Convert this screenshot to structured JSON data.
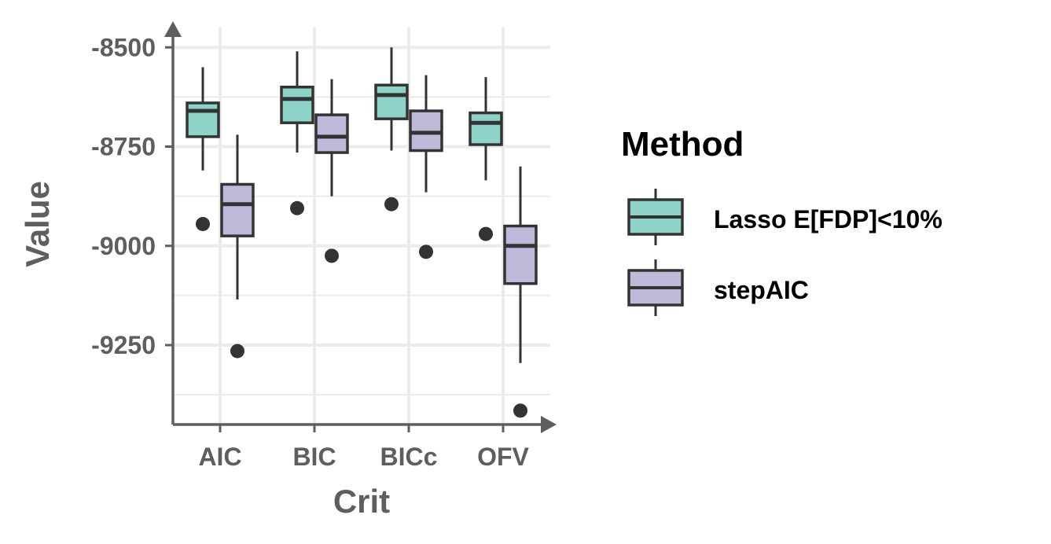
{
  "chart_data": {
    "type": "boxplot",
    "xlabel": "Crit",
    "ylabel": "Value",
    "categories": [
      "AIC",
      "BIC",
      "BICc",
      "OFV"
    ],
    "y_ticks": [
      -8500,
      -8750,
      -9000,
      -9250
    ],
    "y_tick_labels": [
      "-8500",
      "-8750",
      "-9000",
      "-9250"
    ],
    "ylim": [
      -9450,
      -8450
    ],
    "grid": true,
    "legend": {
      "title": "Method",
      "position": "right"
    },
    "series": [
      {
        "name": "Lasso E[FDP]<10%",
        "color": "#8dd3c7",
        "boxes": [
          {
            "category": "AIC",
            "whisker_low": -8810,
            "q1": -8725,
            "median": -8660,
            "q3": -8640,
            "whisker_high": -8550,
            "outliers": [
              -8945
            ]
          },
          {
            "category": "BIC",
            "whisker_low": -8765,
            "q1": -8690,
            "median": -8630,
            "q3": -8600,
            "whisker_high": -8510,
            "outliers": [
              -8905
            ]
          },
          {
            "category": "BICc",
            "whisker_low": -8760,
            "q1": -8680,
            "median": -8620,
            "q3": -8595,
            "whisker_high": -8500,
            "outliers": [
              -8895
            ]
          },
          {
            "category": "OFV",
            "whisker_low": -8835,
            "q1": -8745,
            "median": -8690,
            "q3": -8665,
            "whisker_high": -8575,
            "outliers": [
              -8970
            ]
          }
        ]
      },
      {
        "name": "stepAIC",
        "color": "#bebada",
        "boxes": [
          {
            "category": "AIC",
            "whisker_low": -9135,
            "q1": -8975,
            "median": -8895,
            "q3": -8845,
            "whisker_high": -8720,
            "outliers": [
              -9265
            ]
          },
          {
            "category": "BIC",
            "whisker_low": -8875,
            "q1": -8765,
            "median": -8725,
            "q3": -8670,
            "whisker_high": -8580,
            "outliers": [
              -9025
            ]
          },
          {
            "category": "BICc",
            "whisker_low": -8865,
            "q1": -8760,
            "median": -8715,
            "q3": -8660,
            "whisker_high": -8570,
            "outliers": [
              -9015
            ]
          },
          {
            "category": "OFV",
            "whisker_low": -9295,
            "q1": -9095,
            "median": -9000,
            "q3": -8950,
            "whisker_high": -8800,
            "outliers": [
              -9415
            ]
          }
        ]
      }
    ]
  }
}
